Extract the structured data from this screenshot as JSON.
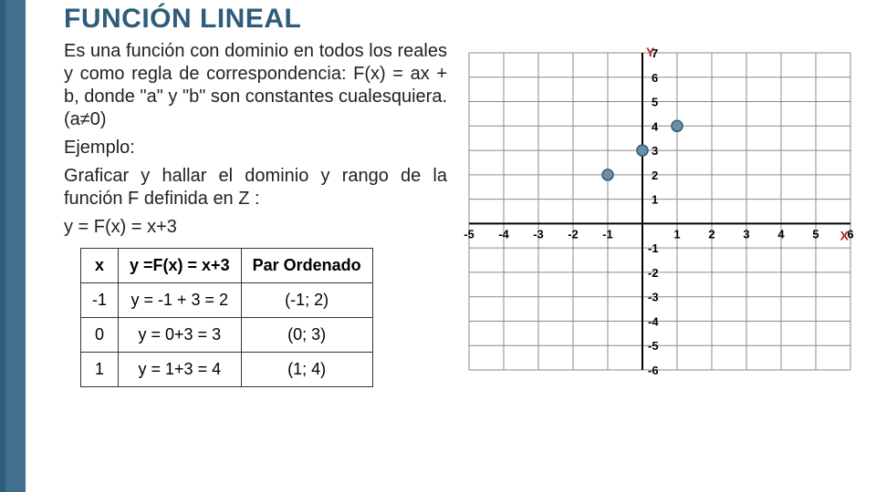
{
  "title": "FUNCIÓN LINEAL",
  "paragraph": "Es una función con dominio en todos los reales y como regla de correspondencia: F(x) = ax + b, donde \"a\" y \"b\" son constantes cualesquiera. (a≠0)",
  "example_label": "Ejemplo:",
  "example_text1": "Graficar y hallar el dominio y rango de la función F definida en Z :",
  "example_text2": "y = F(x) = x+3",
  "table": {
    "headers": [
      "x",
      "y =F(x) = x+3",
      "Par Ordenado"
    ],
    "rows": [
      [
        "-1",
        "y = -1 + 3 = 2",
        "(-1; 2)"
      ],
      [
        "0",
        "y = 0+3 = 3",
        "(0; 3)"
      ],
      [
        "1",
        "y = 1+3 = 4",
        "(1; 4)"
      ]
    ]
  },
  "chart": {
    "type": "scatter",
    "axis_labels": {
      "x": "X",
      "y": "Y"
    },
    "xlim": [
      -5,
      6
    ],
    "ylim": [
      -6,
      7
    ],
    "x_ticks": [
      -5,
      -4,
      -3,
      -2,
      -1,
      1,
      2,
      3,
      4,
      5,
      6
    ],
    "y_ticks_pos": [
      1,
      2,
      3,
      4,
      5,
      6,
      7
    ],
    "y_ticks_neg": [
      -1,
      -2,
      -3,
      -4,
      -5,
      -6
    ],
    "grid_color": "#8a8a8a",
    "axis_color": "#000000",
    "background_color": "#ffffff",
    "label_color_x": "#b02020",
    "label_color_y": "#b02020",
    "tick_font_size": 13,
    "tick_font_weight": "bold",
    "points": [
      {
        "x": -1,
        "y": 2
      },
      {
        "x": 0,
        "y": 3
      },
      {
        "x": 1,
        "y": 4
      }
    ],
    "point_fill": "#6b8fa8",
    "point_stroke": "#2e5c7a",
    "point_radius": 6
  },
  "colors": {
    "brand": "#2e5c7a",
    "brand_light": "#426f8c"
  }
}
